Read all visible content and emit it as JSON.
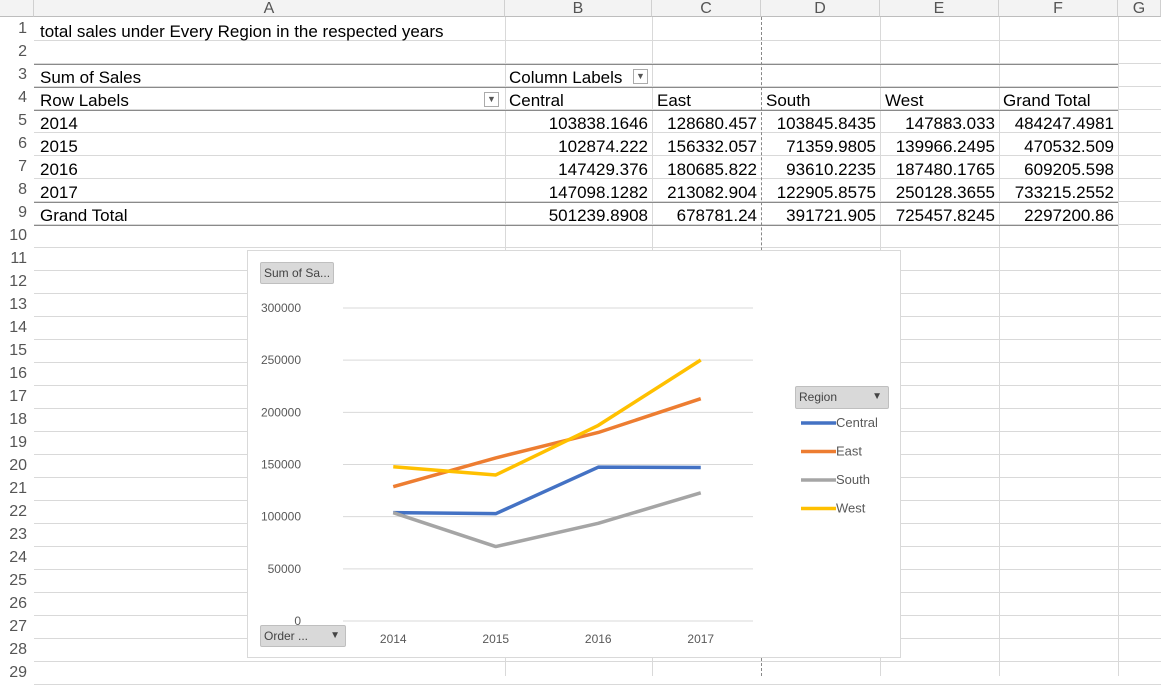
{
  "columns": [
    "A",
    "B",
    "C",
    "D",
    "E",
    "F",
    "G"
  ],
  "rows": [
    "1",
    "2",
    "3",
    "4",
    "5",
    "6",
    "7",
    "8",
    "9",
    "10",
    "11",
    "12",
    "13",
    "14",
    "15",
    "16",
    "17",
    "18",
    "19",
    "20",
    "21",
    "22",
    "23",
    "24",
    "25",
    "26",
    "27",
    "28",
    "29"
  ],
  "sheet": {
    "title": "total sales under Every Region in the respected years",
    "pivot": {
      "value_label": "Sum of Sales",
      "column_labels": "Column Labels",
      "row_labels": "Row Labels",
      "headers": [
        "Central",
        "East",
        "South",
        "West",
        "Grand Total"
      ],
      "rows": [
        {
          "label": "2014",
          "values": [
            "103838.1646",
            "128680.457",
            "103845.8435",
            "147883.033",
            "484247.4981"
          ]
        },
        {
          "label": "2015",
          "values": [
            "102874.222",
            "156332.057",
            "71359.9805",
            "139966.2495",
            "470532.509"
          ]
        },
        {
          "label": "2016",
          "values": [
            "147429.376",
            "180685.822",
            "93610.2235",
            "187480.1765",
            "609205.598"
          ]
        },
        {
          "label": "2017",
          "values": [
            "147098.1282",
            "213082.904",
            "122905.8575",
            "250128.3655",
            "733215.2552"
          ]
        }
      ],
      "grand_total": {
        "label": "Grand Total",
        "values": [
          "501239.8908",
          "678781.24",
          "391721.905",
          "725457.8245",
          "2297200.86"
        ]
      }
    }
  },
  "chart": {
    "value_button": "Sum of Sa...",
    "axis_button": "Order ...",
    "legend_button": "Region"
  },
  "chart_data": {
    "type": "line",
    "x": [
      "2014",
      "2015",
      "2016",
      "2017"
    ],
    "series": [
      {
        "name": "Central",
        "color": "#4472c4",
        "values": [
          103838.1646,
          102874.222,
          147429.376,
          147098.1282
        ]
      },
      {
        "name": "East",
        "color": "#ed7d31",
        "values": [
          128680.457,
          156332.057,
          180685.822,
          213082.904
        ]
      },
      {
        "name": "South",
        "color": "#a5a5a5",
        "values": [
          103845.8435,
          71359.9805,
          93610.2235,
          122905.8575
        ]
      },
      {
        "name": "West",
        "color": "#ffc000",
        "values": [
          147883.033,
          139966.2495,
          187480.1765,
          250128.3655
        ]
      }
    ],
    "yticks": [
      "0",
      "50000",
      "100000",
      "150000",
      "200000",
      "250000",
      "300000"
    ],
    "ylim": [
      0,
      300000
    ],
    "grid": true,
    "legend_position": "right"
  }
}
